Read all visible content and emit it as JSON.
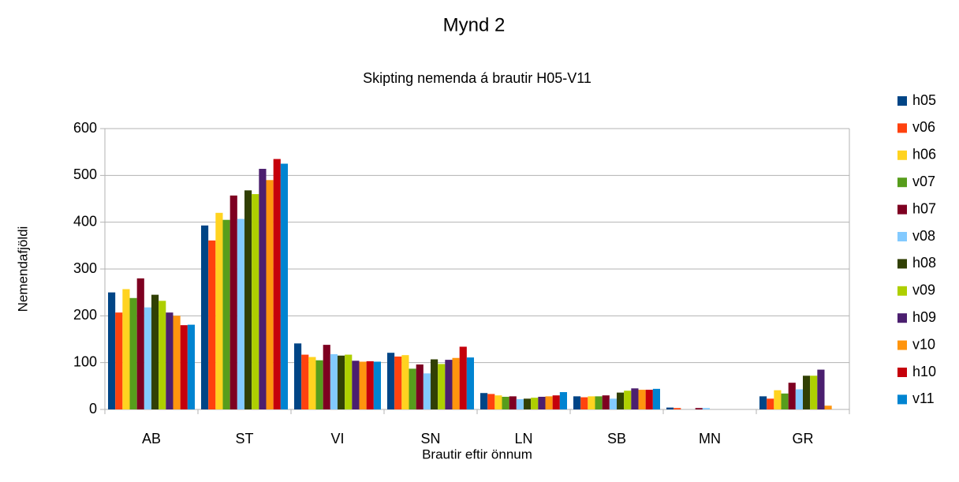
{
  "chart_data": {
    "type": "bar",
    "title": "Mynd 2",
    "subtitle": "Skipting nemenda á brautir H05-V11",
    "xlabel": "Brautir eftir önnum",
    "ylabel": "Nemendafjöldi",
    "categories": [
      "AB",
      "ST",
      "VI",
      "SN",
      "LN",
      "SB",
      "MN",
      "GR"
    ],
    "ylim": [
      0,
      600
    ],
    "yticks": [
      0,
      100,
      200,
      300,
      400,
      500,
      600
    ],
    "grid": true,
    "legend": "right",
    "series": [
      {
        "name": "h05",
        "color": "#004586",
        "values": [
          250,
          393,
          141,
          121,
          35,
          28,
          4,
          28
        ]
      },
      {
        "name": "v06",
        "color": "#ff420e",
        "values": [
          207,
          361,
          117,
          113,
          33,
          26,
          3,
          23
        ]
      },
      {
        "name": "h06",
        "color": "#ffd320",
        "values": [
          257,
          420,
          112,
          116,
          30,
          28,
          0,
          41
        ]
      },
      {
        "name": "v07",
        "color": "#579d1c",
        "values": [
          238,
          405,
          105,
          87,
          27,
          28,
          0,
          34
        ]
      },
      {
        "name": "h07",
        "color": "#7e0021",
        "values": [
          280,
          457,
          138,
          96,
          28,
          30,
          3,
          57
        ]
      },
      {
        "name": "v08",
        "color": "#83caff",
        "values": [
          218,
          407,
          118,
          77,
          22,
          23,
          3,
          43
        ]
      },
      {
        "name": "h08",
        "color": "#314004",
        "values": [
          245,
          468,
          115,
          107,
          23,
          36,
          0,
          72
        ]
      },
      {
        "name": "v09",
        "color": "#aecf00",
        "values": [
          232,
          460,
          117,
          97,
          25,
          40,
          0,
          72
        ]
      },
      {
        "name": "h09",
        "color": "#4b1f6f",
        "values": [
          207,
          514,
          104,
          106,
          27,
          45,
          0,
          85
        ]
      },
      {
        "name": "v10",
        "color": "#ff950e",
        "values": [
          200,
          490,
          102,
          110,
          28,
          42,
          0,
          8
        ]
      },
      {
        "name": "h10",
        "color": "#c5000b",
        "values": [
          180,
          535,
          103,
          134,
          30,
          42,
          0,
          0
        ]
      },
      {
        "name": "v11",
        "color": "#0084d1",
        "values": [
          181,
          525,
          102,
          111,
          37,
          44,
          0,
          0
        ]
      }
    ]
  }
}
